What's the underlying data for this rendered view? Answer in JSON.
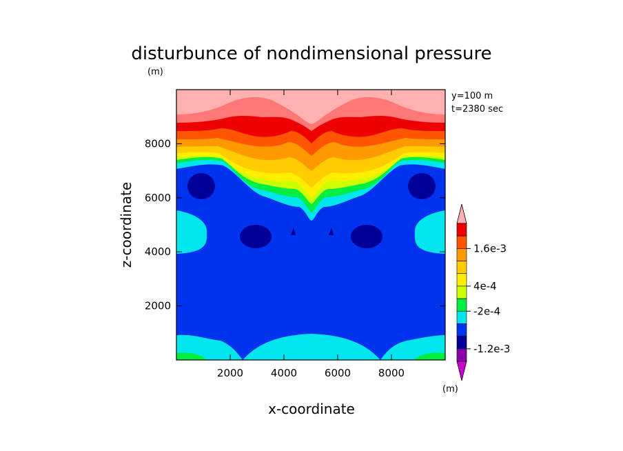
{
  "chart_data": {
    "type": "heatmap",
    "title": "disturbunce of nondimensional pressure",
    "title_units": "(m)",
    "xlabel": "x-coordinate",
    "ylabel": "z-coordinate",
    "xlim": [
      0,
      10000
    ],
    "ylim": [
      0,
      10000
    ],
    "x_ticks": [
      2000,
      4000,
      6000,
      8000
    ],
    "y_ticks": [
      2000,
      4000,
      6000,
      8000
    ],
    "annotations": [
      "y=100 m",
      "t=2380 sec"
    ],
    "colorbar": {
      "units": "(m)",
      "levels": [
        -0.0016,
        -0.0012,
        -0.0008,
        -0.0004,
        -0.0002,
        0,
        0.0002,
        0.0004,
        0.0008,
        0.0012,
        0.0016
      ],
      "tick_labels": [
        "1.6e-3",
        "4e-4",
        "-2e-4",
        "-1.2e-3"
      ],
      "colors": [
        "#cc00cc",
        "#8800aa",
        "#000099",
        "#0033ee",
        "#00e5ee",
        "#00ee44",
        "#ccff00",
        "#ffcc00",
        "#ff8800",
        "#ff5500",
        "#ee0000",
        "#ff7777",
        "#ffb0b0"
      ]
    },
    "bands": [
      {
        "level": "lt_-1.6e-3",
        "color": "#cc00cc"
      },
      {
        "level": "-1.6e-3_-1.2e-3",
        "color": "#8800aa"
      },
      {
        "level": "-1.2e-3_-8e-4",
        "color": "#000099"
      },
      {
        "level": "-8e-4_-4e-4",
        "color": "#0033ee"
      },
      {
        "level": "-4e-4_-2e-4",
        "color": "#00e5ee"
      },
      {
        "level": "-2e-4_0",
        "color": "#00ee44"
      },
      {
        "level": "0_2e-4",
        "color": "#ccff00"
      },
      {
        "level": "2e-4_4e-4",
        "color": "#ffee00"
      },
      {
        "level": "4e-4_8e-4",
        "color": "#ffcc00"
      },
      {
        "level": "8e-4_1.2e-3",
        "color": "#ff9900"
      },
      {
        "level": "1.2e-3_1.6e-3",
        "color": "#ff5500"
      },
      {
        "level": "1.6e-3_2e-3",
        "color": "#ee0000"
      },
      {
        "level": "gt_2e-3",
        "color": "#ffb0b0"
      }
    ]
  }
}
